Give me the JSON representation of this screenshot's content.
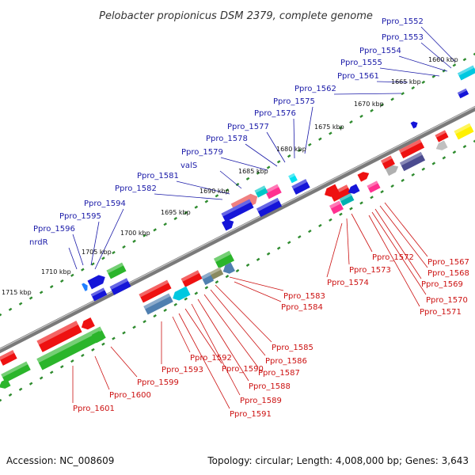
{
  "title": "Pelobacter propionicus DSM 2379, complete genome",
  "footer": {
    "accession": "Accession: NC_008609",
    "topology": "Topology: circular; Length: 4,008,000 bp; Genes: 3,643"
  },
  "colors": {
    "backbone": "#7a7a7a",
    "kbp_dots": "#2e8b2e",
    "forward_label": "#1a1aa8",
    "reverse_label": "#cc1111",
    "red_gene": "#ee1111",
    "blue_gene": "#1515d8",
    "green_gene": "#2bb52b"
  },
  "kbp_labels": [
    "1660 kbp",
    "1665 kbp",
    "1670 kbp",
    "1675 kbp",
    "1680 kbp",
    "1685 kbp",
    "1690 kbp",
    "1695 kbp",
    "1700 kbp",
    "1705 kbp",
    "1710 kbp",
    "1715 kbp"
  ],
  "forward_genes": [
    "Ppro_1552",
    "Ppro_1553",
    "Ppro_1554",
    "Ppro_1555",
    "Ppro_1561",
    "Ppro_1562",
    "Ppro_1575",
    "Ppro_1576",
    "Ppro_1577",
    "Ppro_1578",
    "Ppro_1579",
    "valS",
    "Ppro_1581",
    "Ppro_1582",
    "Ppro_1594",
    "Ppro_1595",
    "Ppro_1596",
    "nrdR"
  ],
  "reverse_genes": [
    "Ppro_1567",
    "Ppro_1568",
    "Ppro_1569",
    "Ppro_1570",
    "Ppro_1571",
    "Ppro_1572",
    "Ppro_1573",
    "Ppro_1574",
    "Ppro_1583",
    "Ppro_1584",
    "Ppro_1585",
    "Ppro_1586",
    "Ppro_1587",
    "Ppro_1588",
    "Ppro_1589",
    "Ppro_1590",
    "Ppro_1591",
    "Ppro_1592",
    "Ppro_1593",
    "Ppro_1599",
    "Ppro_1600",
    "Ppro_1601"
  ]
}
